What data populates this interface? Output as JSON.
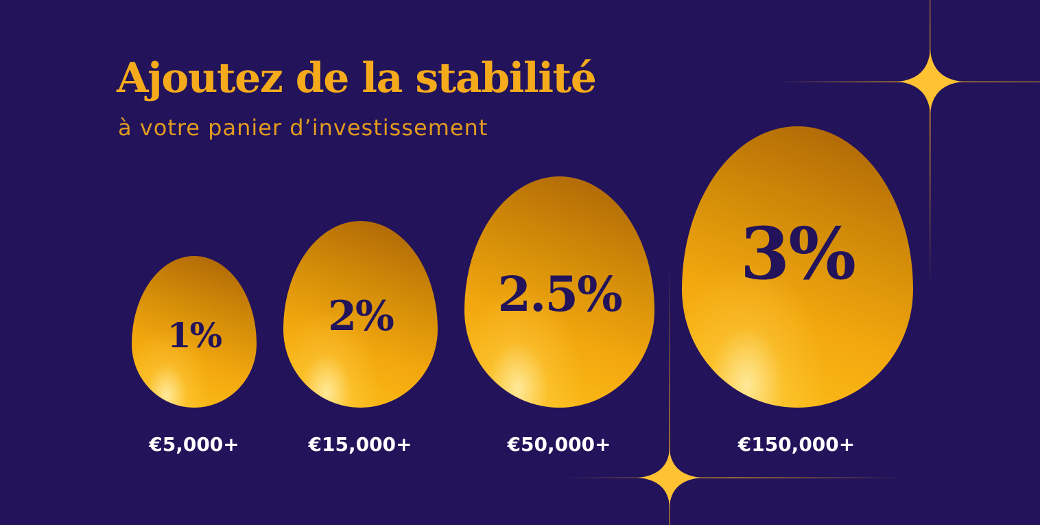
{
  "header": {
    "title": "Ajoutez de la stabilité",
    "subtitle": "à votre panier d’investissement"
  },
  "tiers": [
    {
      "rate": "1%",
      "amount": "€5,000+"
    },
    {
      "rate": "2%",
      "amount": "€15,000+"
    },
    {
      "rate": "2.5%",
      "amount": "€50,000+"
    },
    {
      "rate": "3%",
      "amount": "€150,000+"
    }
  ],
  "colors": {
    "background": "#22135a",
    "gold": "#f5aa1c",
    "rate_text": "#22135a",
    "amount_text": "#ffffff"
  },
  "decorations": [
    "sparkle-icon",
    "sparkle-icon"
  ]
}
